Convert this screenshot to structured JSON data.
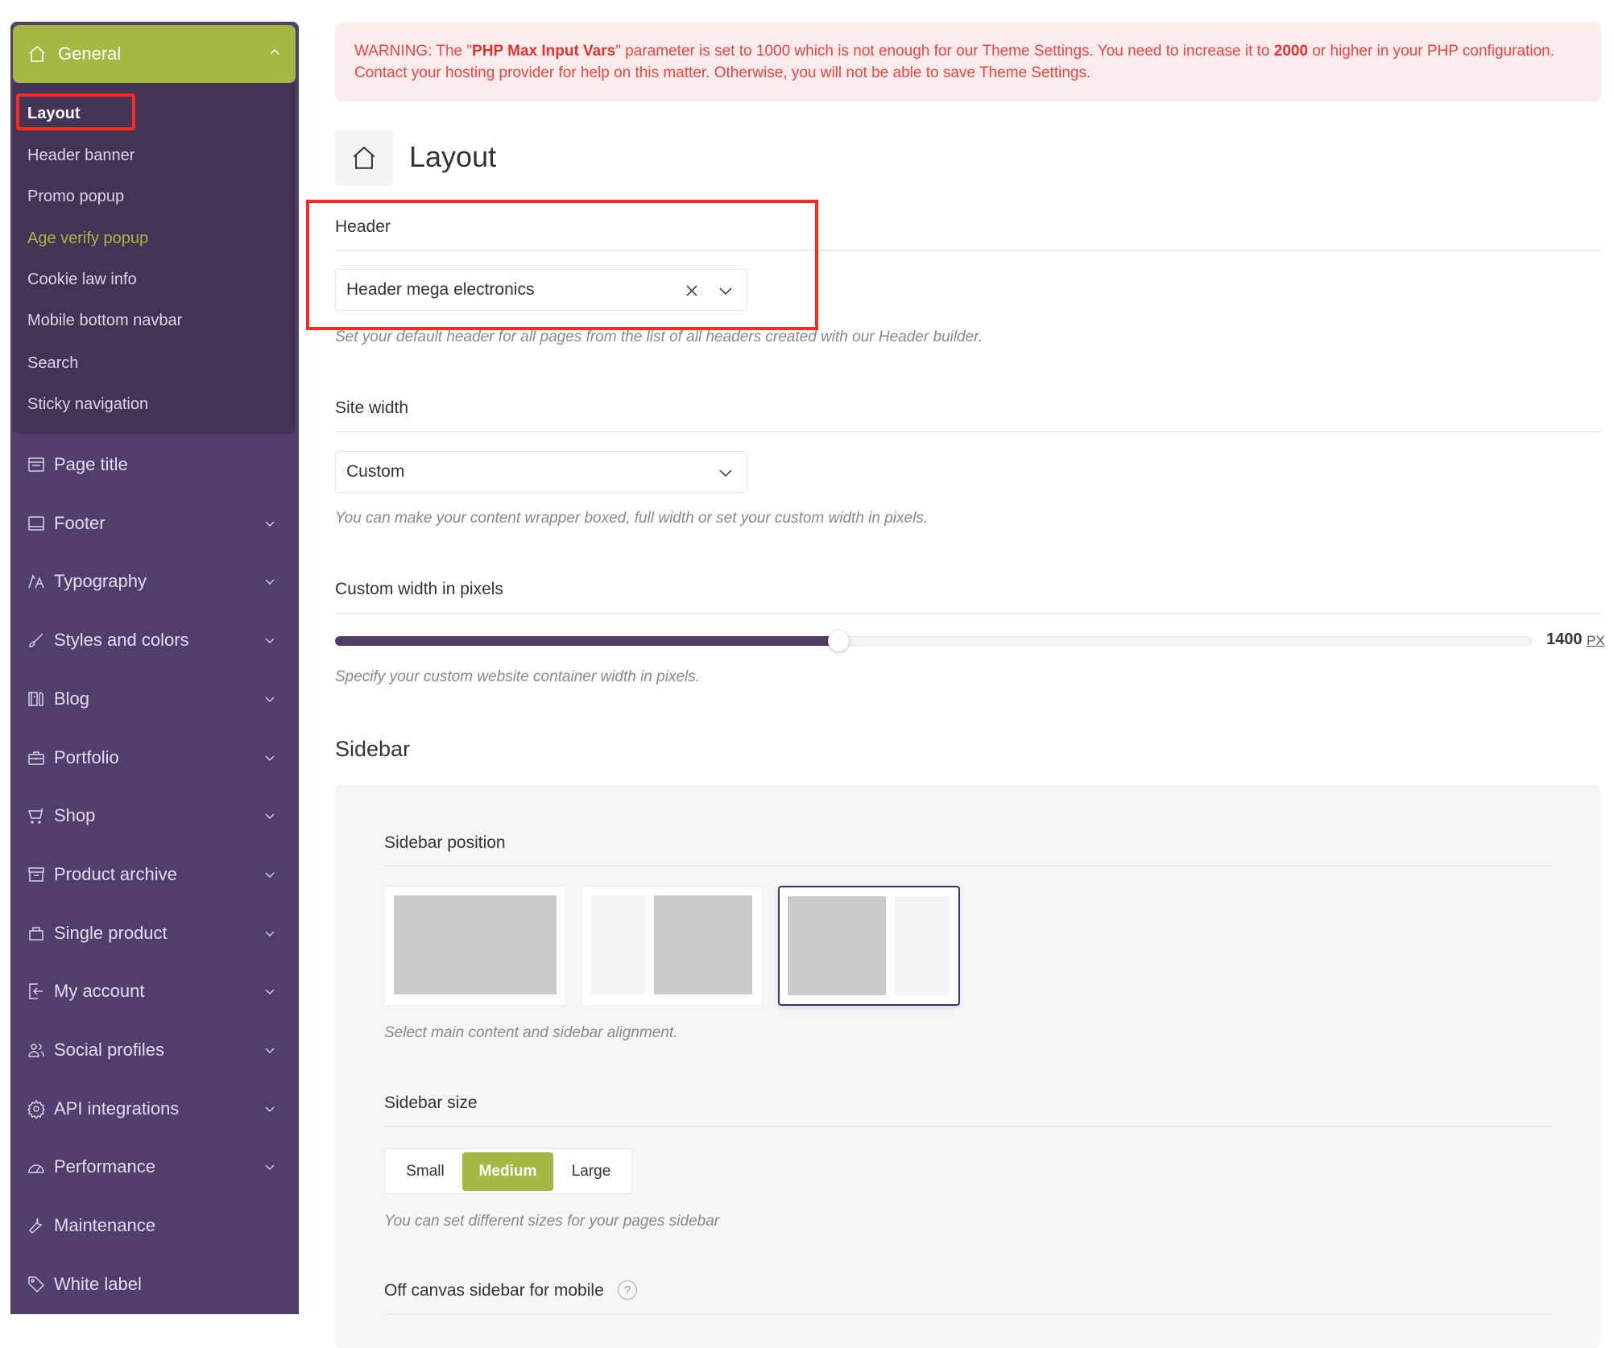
{
  "colors": {
    "sidebar": "#523e6c",
    "submenu": "#433355",
    "accent": "#a5b843",
    "warning_text": "#f2423f",
    "warning_bg": "#fdecec"
  },
  "sidebar": {
    "general": {
      "label": "General",
      "icon": "home-icon"
    },
    "sub_items": [
      {
        "label": "Layout",
        "state": "active"
      },
      {
        "label": "Header banner"
      },
      {
        "label": "Promo popup"
      },
      {
        "label": "Age verify popup",
        "state": "highlighted"
      },
      {
        "label": "Cookie law info"
      },
      {
        "label": "Mobile bottom navbar"
      },
      {
        "label": "Search"
      },
      {
        "label": "Sticky navigation"
      }
    ],
    "items": [
      {
        "label": "Page title",
        "icon": "page-title-icon",
        "chevron": false
      },
      {
        "label": "Footer",
        "icon": "footer-icon",
        "chevron": true
      },
      {
        "label": "Typography",
        "icon": "typography-icon",
        "chevron": true
      },
      {
        "label": "Styles and colors",
        "icon": "brush-icon",
        "chevron": true
      },
      {
        "label": "Blog",
        "icon": "blog-icon",
        "chevron": true
      },
      {
        "label": "Portfolio",
        "icon": "briefcase-icon",
        "chevron": true
      },
      {
        "label": "Shop",
        "icon": "cart-icon",
        "chevron": true
      },
      {
        "label": "Product archive",
        "icon": "archive-icon",
        "chevron": true
      },
      {
        "label": "Single product",
        "icon": "bag-icon",
        "chevron": true
      },
      {
        "label": "My account",
        "icon": "login-icon",
        "chevron": true
      },
      {
        "label": "Social profiles",
        "icon": "users-icon",
        "chevron": true
      },
      {
        "label": "API integrations",
        "icon": "gear-icon",
        "chevron": true
      },
      {
        "label": "Performance",
        "icon": "gauge-icon",
        "chevron": true
      },
      {
        "label": "Maintenance",
        "icon": "wrench-icon",
        "chevron": false
      },
      {
        "label": "White label",
        "icon": "tag-icon",
        "chevron": false
      }
    ]
  },
  "warning": {
    "prefix": "WARNING: The \"",
    "param": "PHP Max Input Vars",
    "mid": "\" parameter is set to 1000 which is not enough for our Theme Settings. You need to increase it to ",
    "value": "2000",
    "suffix": " or higher in your PHP configuration. Contact your hosting provider for help on this matter. Otherwise, you will not be able to save Theme Settings."
  },
  "page": {
    "title": "Layout",
    "icon": "home-icon"
  },
  "header_field": {
    "label": "Header",
    "value": "Header mega electronics",
    "description": "Set your default header for all pages from the list of all headers created with our Header builder."
  },
  "site_width": {
    "label": "Site width",
    "value": "Custom",
    "description": "You can make your content wrapper boxed, full width or set your custom width in pixels."
  },
  "custom_width": {
    "label": "Custom width in pixels",
    "value": "1400",
    "unit": "PX",
    "fill_fraction": 0.42,
    "description": "Specify your custom website container width in pixels."
  },
  "sidebar_section": {
    "title": "Sidebar",
    "position": {
      "label": "Sidebar position",
      "options": [
        "no-sidebar",
        "left-sidebar",
        "right-sidebar"
      ],
      "selected": "right-sidebar",
      "description": "Select main content and sidebar alignment."
    },
    "size": {
      "label": "Sidebar size",
      "options": [
        "Small",
        "Medium",
        "Large"
      ],
      "selected": "Medium",
      "description": "You can set different sizes for your pages sidebar"
    },
    "off_canvas": {
      "label": "Off canvas sidebar for mobile",
      "help": "?"
    }
  }
}
